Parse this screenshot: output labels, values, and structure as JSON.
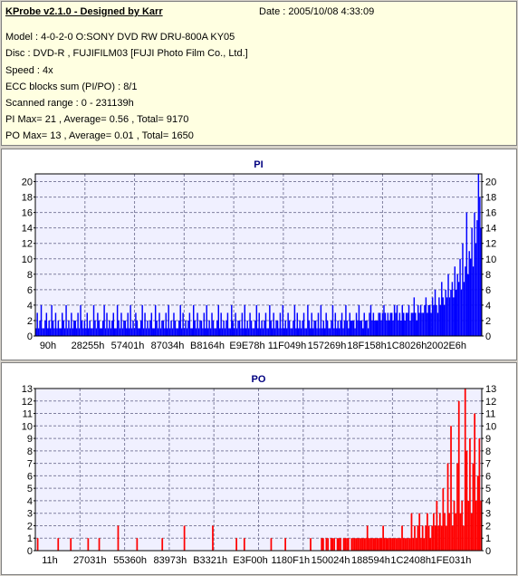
{
  "info": {
    "title": "KProbe v2.1.0 - Designed by Karr",
    "date": "Date : 2005/10/08 4:33:09",
    "lines": [
      "Model : 4-0-2-0 O:SONY    DVD RW DRU-800A  KY05",
      "Disc : DVD-R , FUJIFILM03 [FUJI Photo Film Co., Ltd.]",
      "Speed : 4x",
      "ECC blocks sum (PI/PO) : 8/1",
      "Scanned range : 0 - 231139h",
      "PI Max= 21 , Average= 0.56 , Total= 9170",
      "PO Max= 13 , Average= 0.01 , Total= 1650"
    ]
  },
  "colors": {
    "pi": "#0000ff",
    "po": "#ff0000",
    "title": "#000080",
    "plot_bg": "#f0f0ff"
  },
  "chart_data": [
    {
      "type": "bar",
      "title": "PI",
      "ylim": [
        0,
        21
      ],
      "yticks": [
        0,
        2,
        4,
        6,
        8,
        10,
        12,
        14,
        16,
        18,
        20
      ],
      "xticks": [
        "90h",
        "28255h",
        "57401h",
        "87034h",
        "B8164h",
        "E9E78h",
        "11F049h",
        "157269h",
        "18F158h",
        "1C8026h",
        "2002E6h"
      ],
      "grid": true,
      "x_segments": 9,
      "values": [
        1,
        3,
        1,
        2,
        4,
        1,
        1,
        2,
        3,
        1,
        2,
        1,
        4,
        2,
        1,
        3,
        1,
        2,
        1,
        1,
        3,
        2,
        1,
        4,
        1,
        2,
        1,
        3,
        1,
        2,
        2,
        1,
        3,
        1,
        4,
        2,
        1,
        2,
        1,
        3,
        1,
        2,
        1,
        1,
        4,
        2,
        1,
        3,
        2,
        1,
        1,
        2,
        4,
        1,
        3,
        1,
        2,
        1,
        2,
        3,
        1,
        1,
        4,
        2,
        1,
        3,
        1,
        2,
        2,
        1,
        3,
        1,
        4,
        1,
        2,
        1,
        3,
        2,
        1,
        1,
        2,
        4,
        1,
        3,
        1,
        2,
        1,
        2,
        3,
        1,
        1,
        4,
        2,
        1,
        3,
        1,
        2,
        2,
        1,
        3,
        1,
        4,
        1,
        2,
        1,
        3,
        2,
        1,
        1,
        2,
        4,
        1,
        3,
        1,
        2,
        1,
        2,
        3,
        1,
        1,
        4,
        2,
        1,
        3,
        1,
        2,
        2,
        1,
        3,
        1,
        4,
        1,
        2,
        1,
        3,
        2,
        1,
        1,
        2,
        4,
        1,
        3,
        1,
        2,
        1,
        2,
        3,
        1,
        1,
        4,
        2,
        1,
        3,
        1,
        2,
        2,
        1,
        3,
        1,
        4,
        1,
        2,
        1,
        3,
        2,
        1,
        1,
        2,
        4,
        1,
        3,
        1,
        2,
        1,
        2,
        3,
        1,
        1,
        4,
        2,
        1,
        3,
        1,
        2,
        2,
        1,
        3,
        1,
        4,
        1,
        2,
        1,
        3,
        2,
        1,
        1,
        2,
        4,
        1,
        3,
        1,
        2,
        1,
        2,
        3,
        1,
        1,
        4,
        2,
        1,
        3,
        1,
        2,
        2,
        1,
        3,
        1,
        4,
        1,
        2,
        1,
        3,
        2,
        1,
        1,
        2,
        4,
        1,
        3,
        1,
        2,
        1,
        2,
        3,
        1,
        2,
        4,
        2,
        1,
        3,
        2,
        2,
        2,
        1,
        3,
        2,
        4,
        2,
        2,
        1,
        3,
        2,
        2,
        1,
        3,
        4,
        2,
        3,
        2,
        2,
        2,
        3,
        3,
        2,
        3,
        4,
        3,
        2,
        3,
        2,
        3,
        3,
        2,
        4,
        3,
        4,
        2,
        3,
        2,
        4,
        3,
        2,
        3,
        3,
        4,
        2,
        3,
        3,
        5,
        3,
        2,
        4,
        3,
        4,
        3,
        3,
        4,
        5,
        3,
        4,
        4,
        3,
        5,
        4,
        6,
        4,
        3,
        5,
        4,
        7,
        5,
        4,
        6,
        5,
        8,
        5,
        6,
        7,
        5,
        9,
        6,
        8,
        7,
        10,
        6,
        12,
        7,
        9,
        16,
        8,
        11,
        10,
        14,
        9,
        16,
        12,
        15,
        21,
        18,
        14
      ]
    },
    {
      "type": "bar",
      "title": "PO",
      "ylim": [
        0,
        13
      ],
      "yticks": [
        0,
        1,
        2,
        3,
        4,
        5,
        6,
        7,
        8,
        9,
        10,
        11,
        12,
        13
      ],
      "xticks": [
        "11h",
        "27031h",
        "55360h",
        "83973h",
        "B3321h",
        "E3F00h",
        "1180F1h",
        "150024h",
        "188594h",
        "1C2408h",
        "1FE031h"
      ],
      "grid": true,
      "x_segments": 10,
      "values": [
        0,
        1,
        0,
        0,
        0,
        0,
        0,
        0,
        0,
        0,
        0,
        0,
        0,
        0,
        1,
        0,
        0,
        0,
        0,
        0,
        0,
        0,
        1,
        0,
        0,
        0,
        0,
        0,
        0,
        0,
        0,
        0,
        0,
        1,
        0,
        0,
        0,
        0,
        0,
        0,
        1,
        0,
        0,
        0,
        0,
        0,
        0,
        0,
        0,
        0,
        0,
        0,
        2,
        0,
        0,
        0,
        0,
        0,
        0,
        0,
        0,
        0,
        0,
        0,
        1,
        0,
        0,
        0,
        0,
        0,
        0,
        0,
        0,
        0,
        0,
        0,
        0,
        0,
        0,
        0,
        1,
        0,
        0,
        0,
        0,
        0,
        0,
        0,
        0,
        0,
        0,
        0,
        0,
        0,
        2,
        0,
        0,
        0,
        0,
        0,
        0,
        0,
        0,
        0,
        0,
        0,
        0,
        0,
        0,
        0,
        0,
        0,
        2,
        0,
        0,
        0,
        0,
        0,
        0,
        0,
        0,
        0,
        0,
        0,
        0,
        0,
        0,
        1,
        0,
        0,
        0,
        0,
        1,
        0,
        0,
        0,
        0,
        0,
        0,
        0,
        0,
        0,
        0,
        0,
        0,
        0,
        0,
        0,
        0,
        1,
        0,
        0,
        0,
        0,
        0,
        0,
        0,
        0,
        1,
        0,
        0,
        0,
        0,
        0,
        0,
        0,
        0,
        0,
        0,
        0,
        0,
        0,
        0,
        0,
        1,
        0,
        0,
        0,
        0,
        0,
        0,
        1,
        1,
        0,
        1,
        1,
        0,
        1,
        1,
        1,
        0,
        1,
        1,
        1,
        0,
        1,
        1,
        1,
        1,
        0,
        1,
        1,
        1,
        1,
        1,
        1,
        1,
        1,
        1,
        1,
        2,
        1,
        1,
        1,
        1,
        1,
        1,
        1,
        1,
        1,
        2,
        1,
        1,
        1,
        1,
        1,
        1,
        1,
        1,
        1,
        1,
        1,
        2,
        1,
        1,
        1,
        1,
        1,
        3,
        1,
        2,
        1,
        2,
        3,
        1,
        2,
        1,
        2,
        3,
        2,
        1,
        2,
        3,
        2,
        4,
        2,
        3,
        2,
        5,
        3,
        2,
        7,
        3,
        10,
        2,
        4,
        3,
        7,
        12,
        3,
        4,
        2,
        13,
        8,
        4,
        9,
        3,
        7,
        11,
        4,
        6,
        9,
        4
      ]
    }
  ]
}
